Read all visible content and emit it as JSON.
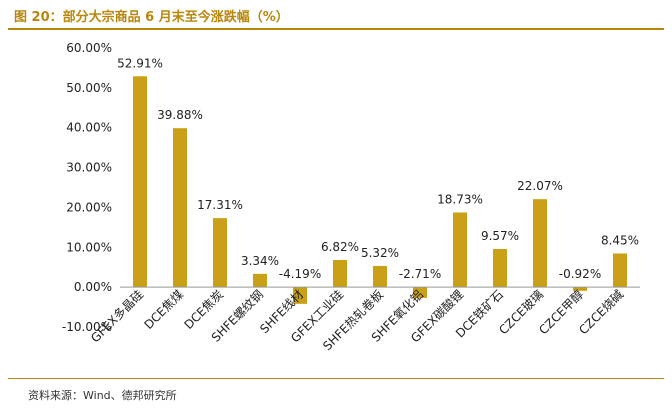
{
  "header": {
    "title": "图 20：部分大宗商品 6 月末至今涨跌幅（%）"
  },
  "footer": {
    "source": "资料来源：Wind、德邦研究所"
  },
  "colors": {
    "accent": "#b8860b",
    "bar": "#c9a018",
    "text": "#222222",
    "axis": "#999999"
  },
  "chart_data": {
    "type": "bar",
    "title": "部分大宗商品 6 月末至今涨跌幅（%）",
    "categories": [
      "GFEX多晶硅",
      "DCE焦煤",
      "DCE焦炭",
      "SHFE螺纹钢",
      "SHFE线材",
      "GFEX工业硅",
      "SHFE热轧卷板",
      "SHFE氧化铝",
      "GFEX碳酸锂",
      "DCE铁矿石",
      "CZCE玻璃",
      "CZCE甲醇",
      "CZCE烧碱"
    ],
    "values": [
      52.91,
      39.88,
      17.31,
      3.34,
      -4.19,
      6.82,
      5.32,
      -2.71,
      18.73,
      9.57,
      22.07,
      -0.92,
      8.45
    ],
    "value_labels": [
      "52.91%",
      "39.88%",
      "17.31%",
      "3.34%",
      "-4.19%",
      "6.82%",
      "5.32%",
      "-2.71%",
      "18.73%",
      "9.57%",
      "22.07%",
      "-0.92%",
      "8.45%"
    ],
    "ylim": [
      -10,
      60
    ],
    "yticks": [
      60,
      50,
      40,
      30,
      20,
      10,
      0,
      -10
    ],
    "ytick_labels": [
      "60.00%",
      "50.00%",
      "40.00%",
      "30.00%",
      "20.00%",
      "10.00%",
      "0.00%",
      "-10.00%"
    ],
    "xlabel": "",
    "ylabel": "",
    "grid": false,
    "legend": "none"
  }
}
